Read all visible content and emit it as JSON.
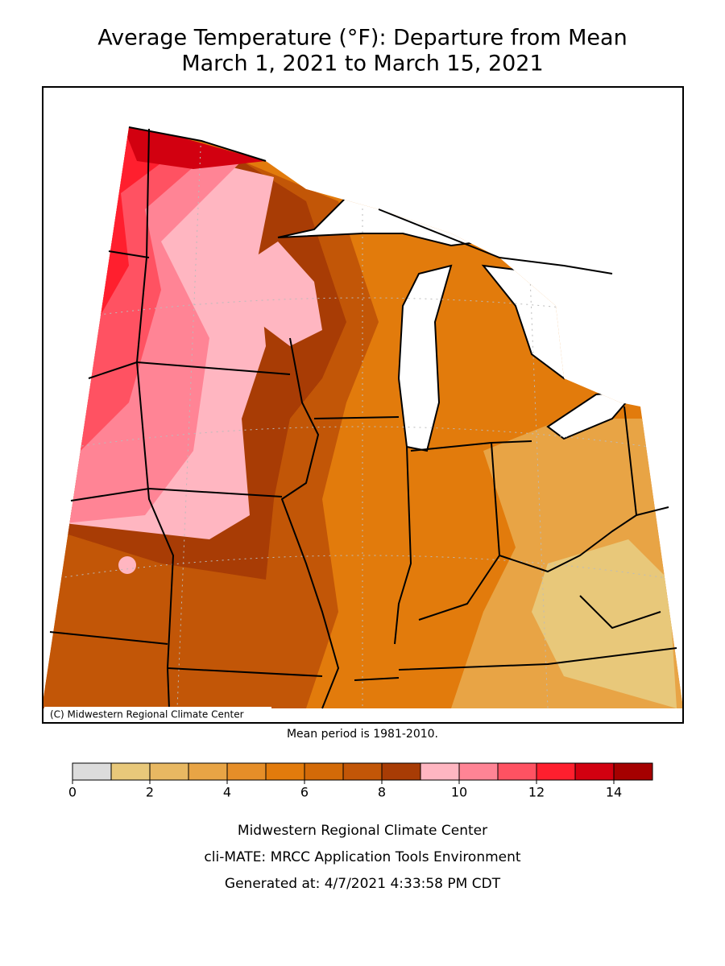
{
  "title": [
    "Average Temperature (°F): Departure from Mean",
    "March 1, 2021 to March 15, 2021"
  ],
  "map": {
    "copyright": "(C) Midwestern Regional Climate Center"
  },
  "mean_period": "Mean period is 1981-2010.",
  "legend": {
    "bins": [
      0,
      1,
      2,
      3,
      4,
      5,
      6,
      7,
      8,
      9,
      10,
      11,
      12,
      13,
      14,
      15
    ],
    "colors": [
      "#dcdcdc",
      "#e8c87a",
      "#e8b862",
      "#e8a445",
      "#e68e28",
      "#e27b0c",
      "#d36a08",
      "#c25607",
      "#a83c05",
      "#ffb6c1",
      "#ff8495",
      "#ff5262",
      "#ff1f2e",
      "#d20010",
      "#a50000"
    ],
    "ticks": [
      0,
      2,
      4,
      6,
      8,
      10,
      12,
      14
    ]
  },
  "footer": [
    "Midwestern Regional Climate Center",
    "cli-MATE: MRCC Application Tools Environment",
    "Generated at: 4/7/2021 4:33:58 PM CDT"
  ]
}
